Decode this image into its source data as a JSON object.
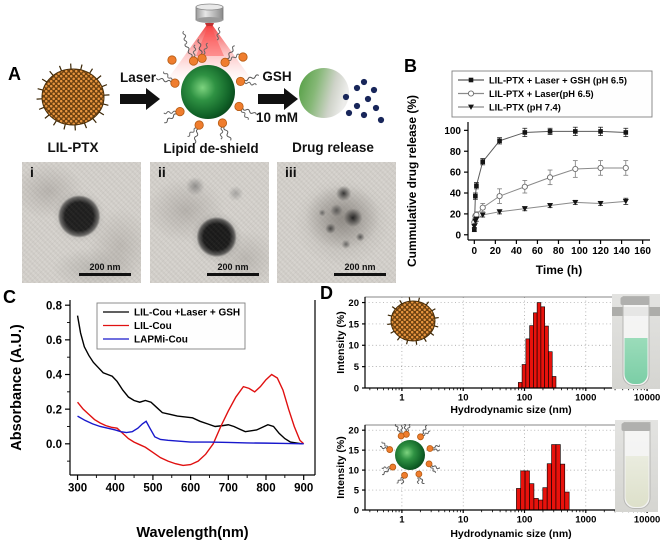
{
  "figure": {
    "panel_labels": {
      "a": "A",
      "b": "B",
      "c": "C",
      "d": "D"
    }
  },
  "panel_a": {
    "steps": {
      "np_label": "LIL-PTX",
      "arrow1_label": "Laser",
      "mid_label": "Lipid de-shield",
      "gsh_top": "GSH",
      "gsh_bottom": "10 mM",
      "release_label": "Drug release"
    },
    "tem": [
      {
        "tag": "i",
        "scalebar": "200 nm"
      },
      {
        "tag": "ii",
        "scalebar": "200 nm"
      },
      {
        "tag": "iii",
        "scalebar": "200 nm"
      }
    ]
  },
  "chart_data": [
    {
      "id": "release",
      "type": "line",
      "title": "",
      "xlabel": "Time (h)",
      "ylabel": "Cummulative drug release (%)",
      "xlim": [
        -6,
        167
      ],
      "ylim": [
        -5,
        108
      ],
      "xticks": [
        0,
        20,
        40,
        60,
        80,
        100,
        120,
        140,
        160
      ],
      "yticks": [
        0,
        20,
        40,
        60,
        80,
        100
      ],
      "legend_position": "top",
      "series": [
        {
          "name": "LIL-PTX + Laser + GSH (pH 6.5)",
          "marker": "filled-square",
          "line_color": "#5a5a5a",
          "marker_color": "#141414",
          "err_color": "#222222",
          "x": [
            0,
            1,
            2,
            8,
            24,
            48,
            72,
            96,
            120,
            144
          ],
          "y": [
            5,
            37,
            47,
            70,
            90,
            98,
            99,
            99,
            99,
            98
          ],
          "err": [
            2,
            3,
            3,
            3,
            3,
            4,
            3,
            4,
            4,
            4
          ]
        },
        {
          "name": "LIL-PTX  + Laser(pH 6.5)",
          "marker": "open-circle",
          "line_color": "#8a8a8a",
          "marker_color": "#6a6a6a",
          "err_color": "#7a7a7a",
          "x": [
            0,
            1,
            2,
            8,
            24,
            48,
            72,
            96,
            120,
            144
          ],
          "y": [
            12,
            18,
            19,
            26,
            37,
            46,
            55,
            63,
            64,
            64
          ],
          "err": [
            3,
            2,
            3,
            4,
            7,
            6,
            7,
            8,
            7,
            7
          ]
        },
        {
          "name": "LIL-PTX (pH 7.4)",
          "marker": "filled-triangle-down",
          "line_color": "#8a8a8a",
          "marker_color": "#141414",
          "err_color": "#222222",
          "x": [
            0,
            1,
            2,
            8,
            24,
            48,
            72,
            96,
            120,
            144
          ],
          "y": [
            8,
            13,
            15,
            19,
            22,
            25,
            28,
            31,
            30,
            32
          ],
          "err": [
            2,
            2,
            2,
            2,
            2,
            2,
            2,
            2,
            2,
            3
          ]
        }
      ]
    },
    {
      "id": "absorbance",
      "type": "line",
      "title": "",
      "xlabel": "Wavelength(nm)",
      "ylabel": "Absorbance (A.U.)",
      "xlim": [
        280,
        930
      ],
      "ylim": [
        -0.18,
        0.83
      ],
      "xticks": [
        300,
        400,
        500,
        600,
        700,
        800,
        900
      ],
      "yticks": [
        0.0,
        0.2,
        0.4,
        0.6,
        0.8
      ],
      "legend_position": "top-inside",
      "series": [
        {
          "name": "LIL-Cou +Laser + GSH",
          "marker": null,
          "line_color": "#000000",
          "x": [
            300,
            308,
            318,
            330,
            342,
            355,
            368,
            380,
            392,
            405,
            420,
            435,
            450,
            465,
            480,
            495,
            510,
            525,
            545,
            565,
            585,
            605,
            625,
            645,
            665,
            685,
            700,
            715,
            730,
            745,
            760,
            775,
            790,
            805,
            820,
            835,
            850,
            865,
            880,
            895
          ],
          "y": [
            0.74,
            0.64,
            0.56,
            0.51,
            0.47,
            0.44,
            0.41,
            0.4,
            0.39,
            0.36,
            0.31,
            0.27,
            0.25,
            0.24,
            0.25,
            0.24,
            0.21,
            0.18,
            0.17,
            0.16,
            0.155,
            0.15,
            0.13,
            0.115,
            0.1,
            0.105,
            0.11,
            0.1,
            0.085,
            0.07,
            0.075,
            0.08,
            0.095,
            0.11,
            0.1,
            0.06,
            0.03,
            0.01,
            0.005,
            0.0
          ]
        },
        {
          "name": "LIL-Cou",
          "marker": null,
          "line_color": "#e01010",
          "x": [
            300,
            315,
            330,
            345,
            360,
            375,
            390,
            405,
            420,
            435,
            450,
            465,
            480,
            500,
            520,
            540,
            560,
            580,
            600,
            620,
            640,
            660,
            680,
            700,
            720,
            740,
            755,
            770,
            785,
            800,
            815,
            830,
            845,
            860,
            875,
            890,
            900
          ],
          "y": [
            0.24,
            0.2,
            0.17,
            0.14,
            0.12,
            0.105,
            0.095,
            0.09,
            0.06,
            0.03,
            0.01,
            -0.005,
            -0.02,
            -0.05,
            -0.08,
            -0.1,
            -0.115,
            -0.125,
            -0.12,
            -0.1,
            -0.06,
            0.0,
            0.1,
            0.19,
            0.27,
            0.33,
            0.32,
            0.3,
            0.33,
            0.37,
            0.4,
            0.38,
            0.31,
            0.2,
            0.1,
            0.02,
            0.0
          ]
        },
        {
          "name": "LAPMi-Cou",
          "marker": null,
          "line_color": "#1818cc",
          "x": [
            300,
            320,
            340,
            360,
            380,
            400,
            415,
            430,
            445,
            460,
            472,
            482,
            492,
            505,
            520,
            540,
            570,
            600,
            650,
            700,
            750,
            800,
            850,
            900
          ],
          "y": [
            0.16,
            0.135,
            0.115,
            0.1,
            0.09,
            0.08,
            0.07,
            0.065,
            0.07,
            0.09,
            0.115,
            0.13,
            0.09,
            0.04,
            0.025,
            0.02,
            0.015,
            0.01,
            0.01,
            0.008,
            0.005,
            0.004,
            0.002,
            0.0
          ]
        }
      ]
    },
    {
      "id": "dls1",
      "type": "bar",
      "title": "",
      "xlabel": "Hydrodynamic size (nm)",
      "ylabel": "Intensity  (%)",
      "xscale": "log",
      "xlim": [
        0.25,
        14500
      ],
      "ylim": [
        0,
        21.3
      ],
      "xticks": [
        1,
        10,
        100,
        1000,
        10000
      ],
      "yticks": [
        0,
        5,
        10,
        15,
        20
      ],
      "grid": true,
      "bar_color": "#e8120c",
      "bars": {
        "x": [
          85,
          98,
          113,
          130,
          150,
          172,
          199,
          229,
          264,
          304
        ],
        "values": [
          1.3,
          5.5,
          11.5,
          14.6,
          17.6,
          20,
          19,
          14.5,
          8.5,
          2.7
        ]
      }
    },
    {
      "id": "dls2",
      "type": "bar",
      "title": "",
      "xlabel": "Hydrodynamic size (nm)",
      "ylabel": "Intensity  (%)",
      "xscale": "log",
      "xlim": [
        0.25,
        14500
      ],
      "ylim": [
        0,
        21.3
      ],
      "xticks": [
        1,
        10,
        100,
        1000,
        10000
      ],
      "yticks": [
        0,
        5,
        10,
        15,
        20
      ],
      "grid": true,
      "bar_color": "#e8120c",
      "bars": {
        "x": [
          80,
          94,
          111,
          131,
          155,
          183,
          216,
          254,
          300,
          354,
          418,
          493
        ],
        "values": [
          5.4,
          9.8,
          9.8,
          6.6,
          2.9,
          2.5,
          5.6,
          11.6,
          16.4,
          16.4,
          11.5,
          4.5
        ]
      }
    }
  ]
}
